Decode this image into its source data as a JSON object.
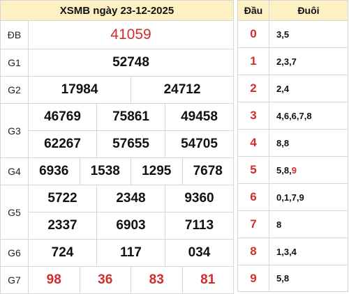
{
  "title": "XSMB ngày 23-12-2025",
  "prizes": {
    "db": {
      "label": "ĐB",
      "numbers": [
        "41059"
      ]
    },
    "g1": {
      "label": "G1",
      "numbers": [
        "52748"
      ]
    },
    "g2": {
      "label": "G2",
      "numbers": [
        "17984",
        "24712"
      ]
    },
    "g3": {
      "label": "G3",
      "numbers": [
        "46769",
        "75861",
        "49458",
        "62267",
        "57655",
        "54705"
      ]
    },
    "g4": {
      "label": "G4",
      "numbers": [
        "6936",
        "1538",
        "1295",
        "7678"
      ]
    },
    "g5": {
      "label": "G5",
      "numbers": [
        "5722",
        "2348",
        "9360",
        "2337",
        "6903",
        "7113"
      ]
    },
    "g6": {
      "label": "G6",
      "numbers": [
        "724",
        "117",
        "034"
      ]
    },
    "g7": {
      "label": "G7",
      "numbers": [
        "98",
        "36",
        "83",
        "81"
      ]
    }
  },
  "loto": {
    "head_label": "Đầu",
    "tail_label": "Đuôi",
    "rows": [
      {
        "head": "0",
        "tail": "3,5"
      },
      {
        "head": "1",
        "tail": "2,3,7"
      },
      {
        "head": "2",
        "tail": "2,4"
      },
      {
        "head": "3",
        "tail": "4,6,6,7,8"
      },
      {
        "head": "4",
        "tail": "8,8"
      },
      {
        "head": "5",
        "tail": "5,8,",
        "tail_highlight": "9"
      },
      {
        "head": "6",
        "tail": "0,1,7,9"
      },
      {
        "head": "7",
        "tail": "8"
      },
      {
        "head": "8",
        "tail": "1,3,4"
      },
      {
        "head": "9",
        "tail": "5,8"
      }
    ]
  },
  "colors": {
    "accent": "#d42b2b",
    "header_bg": "#fdf1c4",
    "border": "#d6d6d6"
  }
}
